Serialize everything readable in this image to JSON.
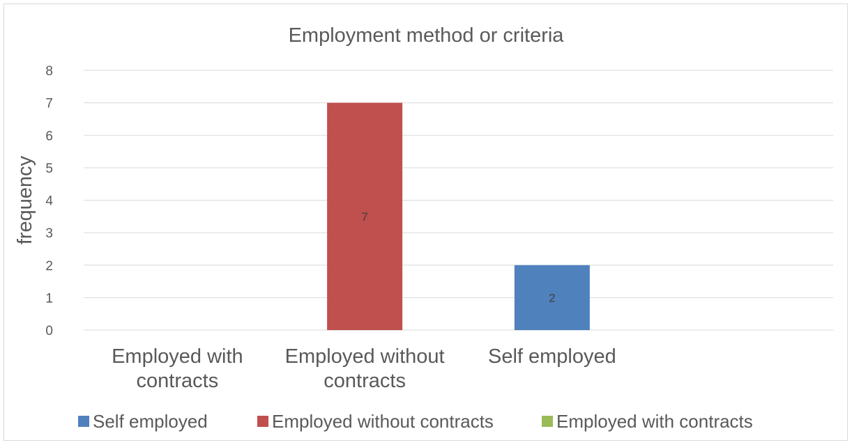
{
  "chart_data": {
    "type": "bar",
    "title": "Employment method or criteria",
    "ylabel": "frequency",
    "xlabel": "",
    "ylim": [
      0,
      8
    ],
    "yticks": [
      0,
      1,
      2,
      3,
      4,
      5,
      6,
      7,
      8
    ],
    "grid": true,
    "legend_position": "bottom",
    "categories": [
      "Employed with contracts",
      "Employed without contracts",
      "Self employed"
    ],
    "category_lines": [
      [
        "Employed with",
        "contracts"
      ],
      [
        "Employed without",
        "contracts"
      ],
      [
        "Self employed"
      ]
    ],
    "series": [
      {
        "name": "Self employed",
        "color": "#4f81bd",
        "values": [
          null,
          null,
          2
        ]
      },
      {
        "name": "Employed without contracts",
        "color": "#c0504d",
        "values": [
          null,
          7,
          null
        ]
      },
      {
        "name": "Employed with contracts",
        "color": "#9bbb59",
        "values": [
          null,
          null,
          null
        ]
      }
    ],
    "data_labels": true
  }
}
